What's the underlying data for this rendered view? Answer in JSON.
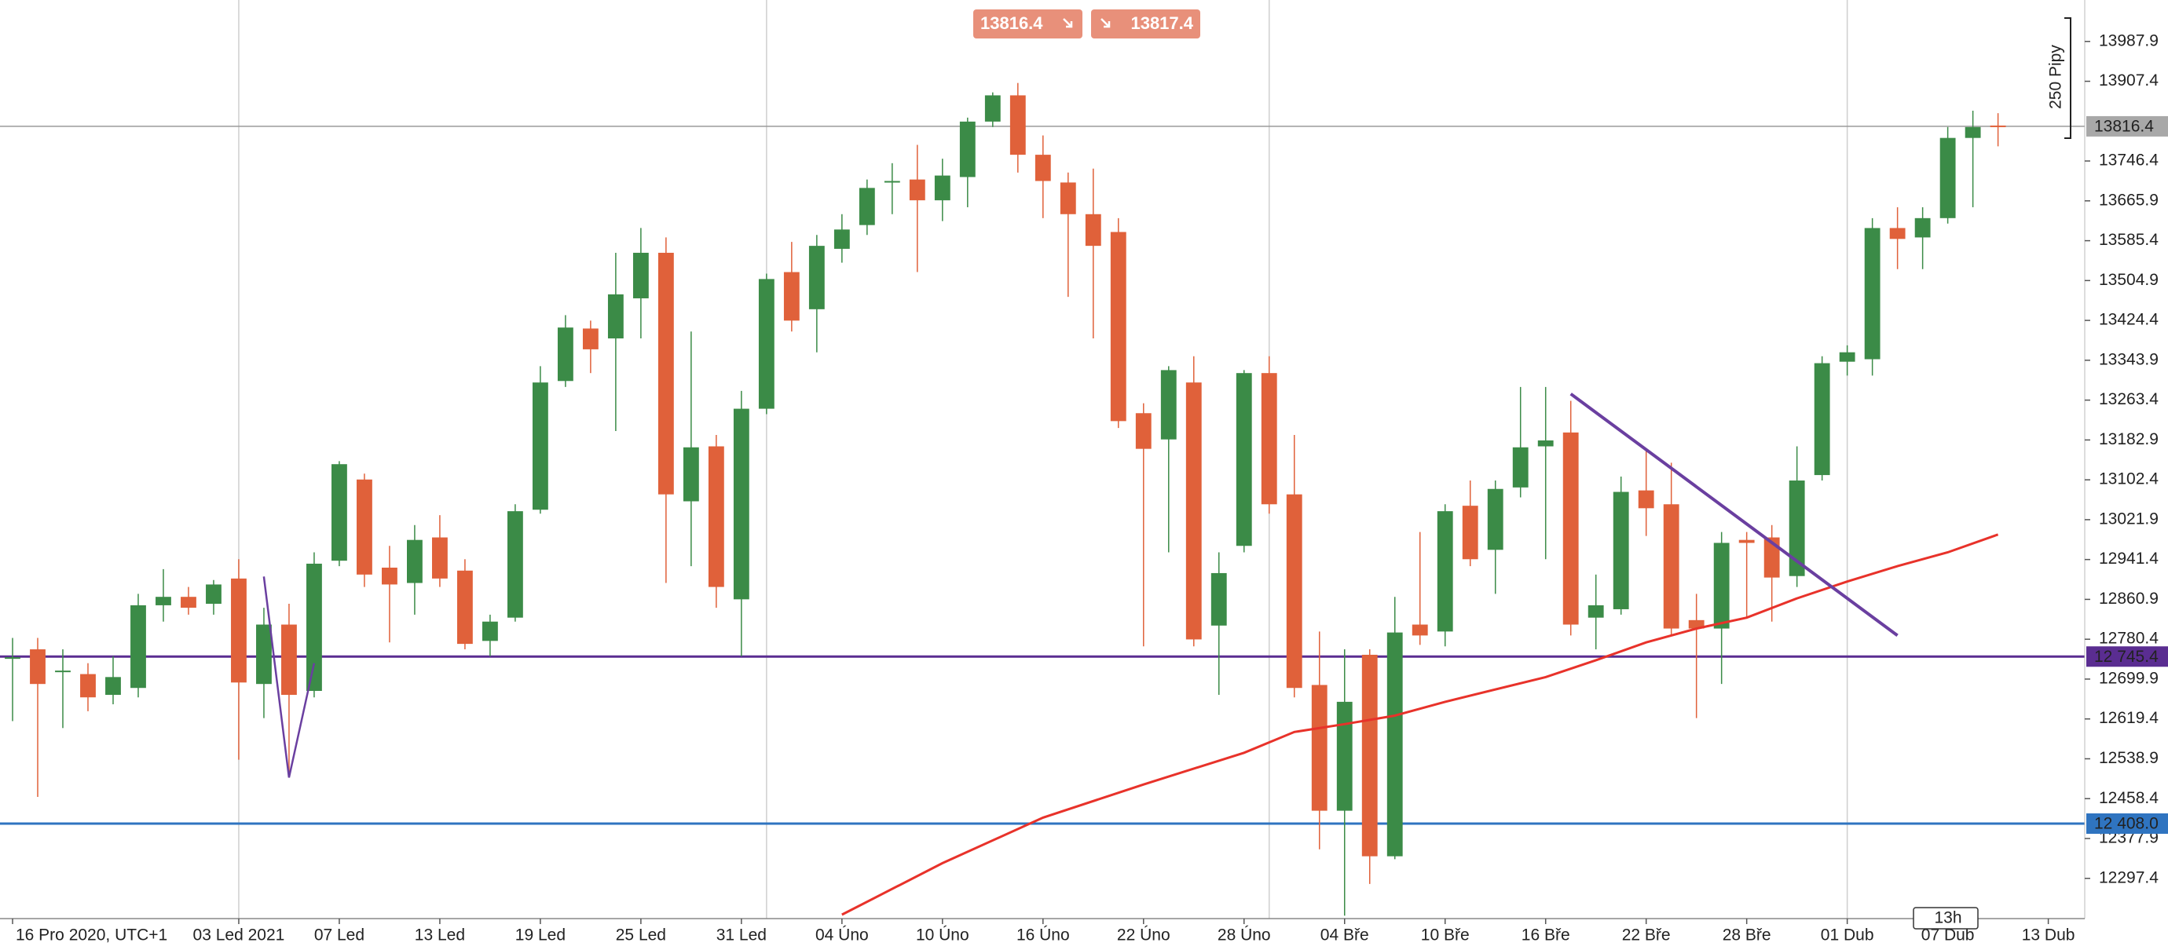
{
  "chart_data": {
    "type": "candlestick",
    "sell_price": 13816.4,
    "buy_price": 13817.4,
    "range_label": "250 Pipy",
    "timeframe": "13h",
    "up_color": "#3b8b47",
    "down_color": "#e0613a",
    "xlim": [
      -0.5,
      82.45
    ],
    "ylim": [
      12216.1,
      14071.6
    ],
    "xticks": [
      {
        "value": 0,
        "label": "16 Pro 2020, UTC+1"
      },
      {
        "value": 9,
        "label": "03 Led 2021"
      },
      {
        "value": 13,
        "label": "07 Led"
      },
      {
        "value": 17,
        "label": "13 Led"
      },
      {
        "value": 21,
        "label": "19 Led"
      },
      {
        "value": 25,
        "label": "25 Led"
      },
      {
        "value": 29,
        "label": "31 Led"
      },
      {
        "value": 33,
        "label": "04 Úno"
      },
      {
        "value": 37,
        "label": "10 Úno"
      },
      {
        "value": 41,
        "label": "16 Úno"
      },
      {
        "value": 45,
        "label": "22 Úno"
      },
      {
        "value": 49,
        "label": "28 Úno"
      },
      {
        "value": 53,
        "label": "04 Bře"
      },
      {
        "value": 57,
        "label": "10 Bře"
      },
      {
        "value": 61,
        "label": "16 Bře"
      },
      {
        "value": 65,
        "label": "22 Bře"
      },
      {
        "value": 69,
        "label": "28 Bře"
      },
      {
        "value": 73,
        "label": "01 Dub"
      },
      {
        "value": 77,
        "label": "07 Dub"
      },
      {
        "value": 81,
        "label": "13 Dub"
      }
    ],
    "yticks": [
      13987.9,
      13907.4,
      13746.4,
      13665.9,
      13585.4,
      13504.9,
      13424.4,
      13343.9,
      13263.4,
      13182.9,
      13102.4,
      13021.9,
      12941.4,
      12860.9,
      12780.4,
      12699.9,
      12619.4,
      12538.9,
      12458.4,
      12377.9,
      12297.4
    ],
    "month_lines": [
      9,
      30,
      50,
      73
    ],
    "open": [
      12743,
      12760,
      12715,
      12710,
      12668,
      12682,
      12849,
      12866,
      12852,
      12903,
      12690,
      12810,
      12676,
      12939,
      13103,
      12925,
      12894,
      12986,
      12919,
      12777,
      12824,
      13042,
      13302,
      13408,
      13388,
      13469,
      13561,
      13059,
      13170,
      12861,
      13246,
      13522,
      13447,
      13569,
      13617,
      13703,
      13709,
      13667,
      13714,
      13826,
      13879,
      13759,
      13703,
      13639,
      13603,
      13237,
      13184,
      13299,
      12808,
      12969,
      13318,
      13073,
      12688,
      12434,
      12749,
      12342,
      12810,
      12796,
      13050,
      12961,
      13087,
      13170,
      13198,
      12824,
      12841,
      13081,
      13053,
      12819,
      12802,
      12981,
      12986,
      12908,
      13112,
      13341,
      13346,
      13611,
      13592,
      13631,
      13793,
      13818
    ],
    "high": [
      12783,
      12783,
      12760,
      12732,
      12746,
      12872,
      12922,
      12886,
      12900,
      12942,
      12844,
      12852,
      12956,
      13140,
      13115,
      12969,
      13011,
      13031,
      12942,
      12830,
      13053,
      13332,
      13435,
      13424,
      13561,
      13611,
      13592,
      13402,
      13193,
      13282,
      13519,
      13583,
      13597,
      13639,
      13709,
      13742,
      13779,
      13751,
      13834,
      13885,
      13904,
      13798,
      13723,
      13731,
      13631,
      13257,
      13332,
      13352,
      12956,
      13324,
      13352,
      13193,
      12796,
      12760,
      12760,
      12866,
      12997,
      13053,
      13101,
      13101,
      13290,
      13290,
      13262,
      12911,
      13109,
      13165,
      13137,
      12872,
      12997,
      12997,
      13011,
      13170,
      13352,
      13374,
      13631,
      13653,
      13653,
      13815,
      13848,
      13843
    ],
    "low": [
      12615,
      12462,
      12601,
      12635,
      12649,
      12663,
      12816,
      12830,
      12830,
      12537,
      12621,
      12501,
      12663,
      12928,
      12886,
      12774,
      12830,
      12886,
      12760,
      12746,
      12816,
      13034,
      13290,
      13318,
      13201,
      13388,
      12894,
      12928,
      12844,
      12746,
      13235,
      13402,
      13360,
      13541,
      13597,
      13639,
      13522,
      13625,
      13653,
      13815,
      13723,
      13631,
      13472,
      13388,
      13207,
      12766,
      12956,
      12766,
      12668,
      12956,
      13034,
      12663,
      12356,
      12222,
      12286,
      12336,
      12769,
      12766,
      12928,
      12872,
      13067,
      12942,
      12788,
      12760,
      12830,
      12989,
      12788,
      12621,
      12690,
      12822,
      12816,
      12886,
      13101,
      13313,
      13313,
      13528,
      13528,
      13620,
      13653,
      13776
    ],
    "close": [
      12744,
      12690,
      12717,
      12663,
      12704,
      12849,
      12866,
      12844,
      12891,
      12693,
      12810,
      12668,
      12933,
      13134,
      12911,
      12891,
      12981,
      12903,
      12771,
      12816,
      13039,
      13299,
      13410,
      13366,
      13477,
      13561,
      13073,
      13168,
      12886,
      13246,
      13508,
      13424,
      13575,
      13608,
      13692,
      13706,
      13667,
      13717,
      13826,
      13879,
      13759,
      13706,
      13639,
      13575,
      13221,
      13165,
      13324,
      12780,
      12914,
      13318,
      13053,
      12682,
      12434,
      12654,
      12342,
      12794,
      12788,
      13039,
      12942,
      13084,
      13168,
      13182,
      12810,
      12849,
      13078,
      13045,
      12802,
      12802,
      12975,
      12975,
      12905,
      13101,
      13338,
      13360,
      13611,
      13589,
      13631,
      13793,
      13815,
      13816.4
    ],
    "moving_average": {
      "color": "#e8322a",
      "x": [
        33,
        37,
        41,
        45,
        49,
        51,
        53,
        55,
        57,
        61,
        63,
        65,
        67,
        69,
        71,
        73,
        75,
        77,
        79
      ],
      "values": [
        12224,
        12328,
        12420,
        12487,
        12551,
        12593,
        12609,
        12626,
        12654,
        12704,
        12738,
        12774,
        12802,
        12824,
        12863,
        12897,
        12928,
        12956,
        12992
      ]
    },
    "trendlines": [
      {
        "color": "#6a3fa0",
        "x": [
          62,
          75
        ],
        "values": [
          13276,
          12788
        ]
      },
      {
        "color": "#6a3fa0",
        "x": [
          10,
          11,
          12
        ],
        "values": [
          12907,
          12501,
          12732
        ]
      }
    ],
    "price_lines": [
      {
        "value": 13816.4,
        "color": "#9a9a9a",
        "label_color": "#a8a8a8",
        "text_color": "#111111"
      },
      {
        "value": 12745.4,
        "label": "12 745.4",
        "color": "#5a2d91",
        "label_color": "#5a2d91",
        "text_color": "#ffffff"
      },
      {
        "value": 12408.0,
        "label": "12 408.0",
        "color": "#2f74c0",
        "label_color": "#2f74c0",
        "text_color": "#ffffff"
      }
    ]
  }
}
